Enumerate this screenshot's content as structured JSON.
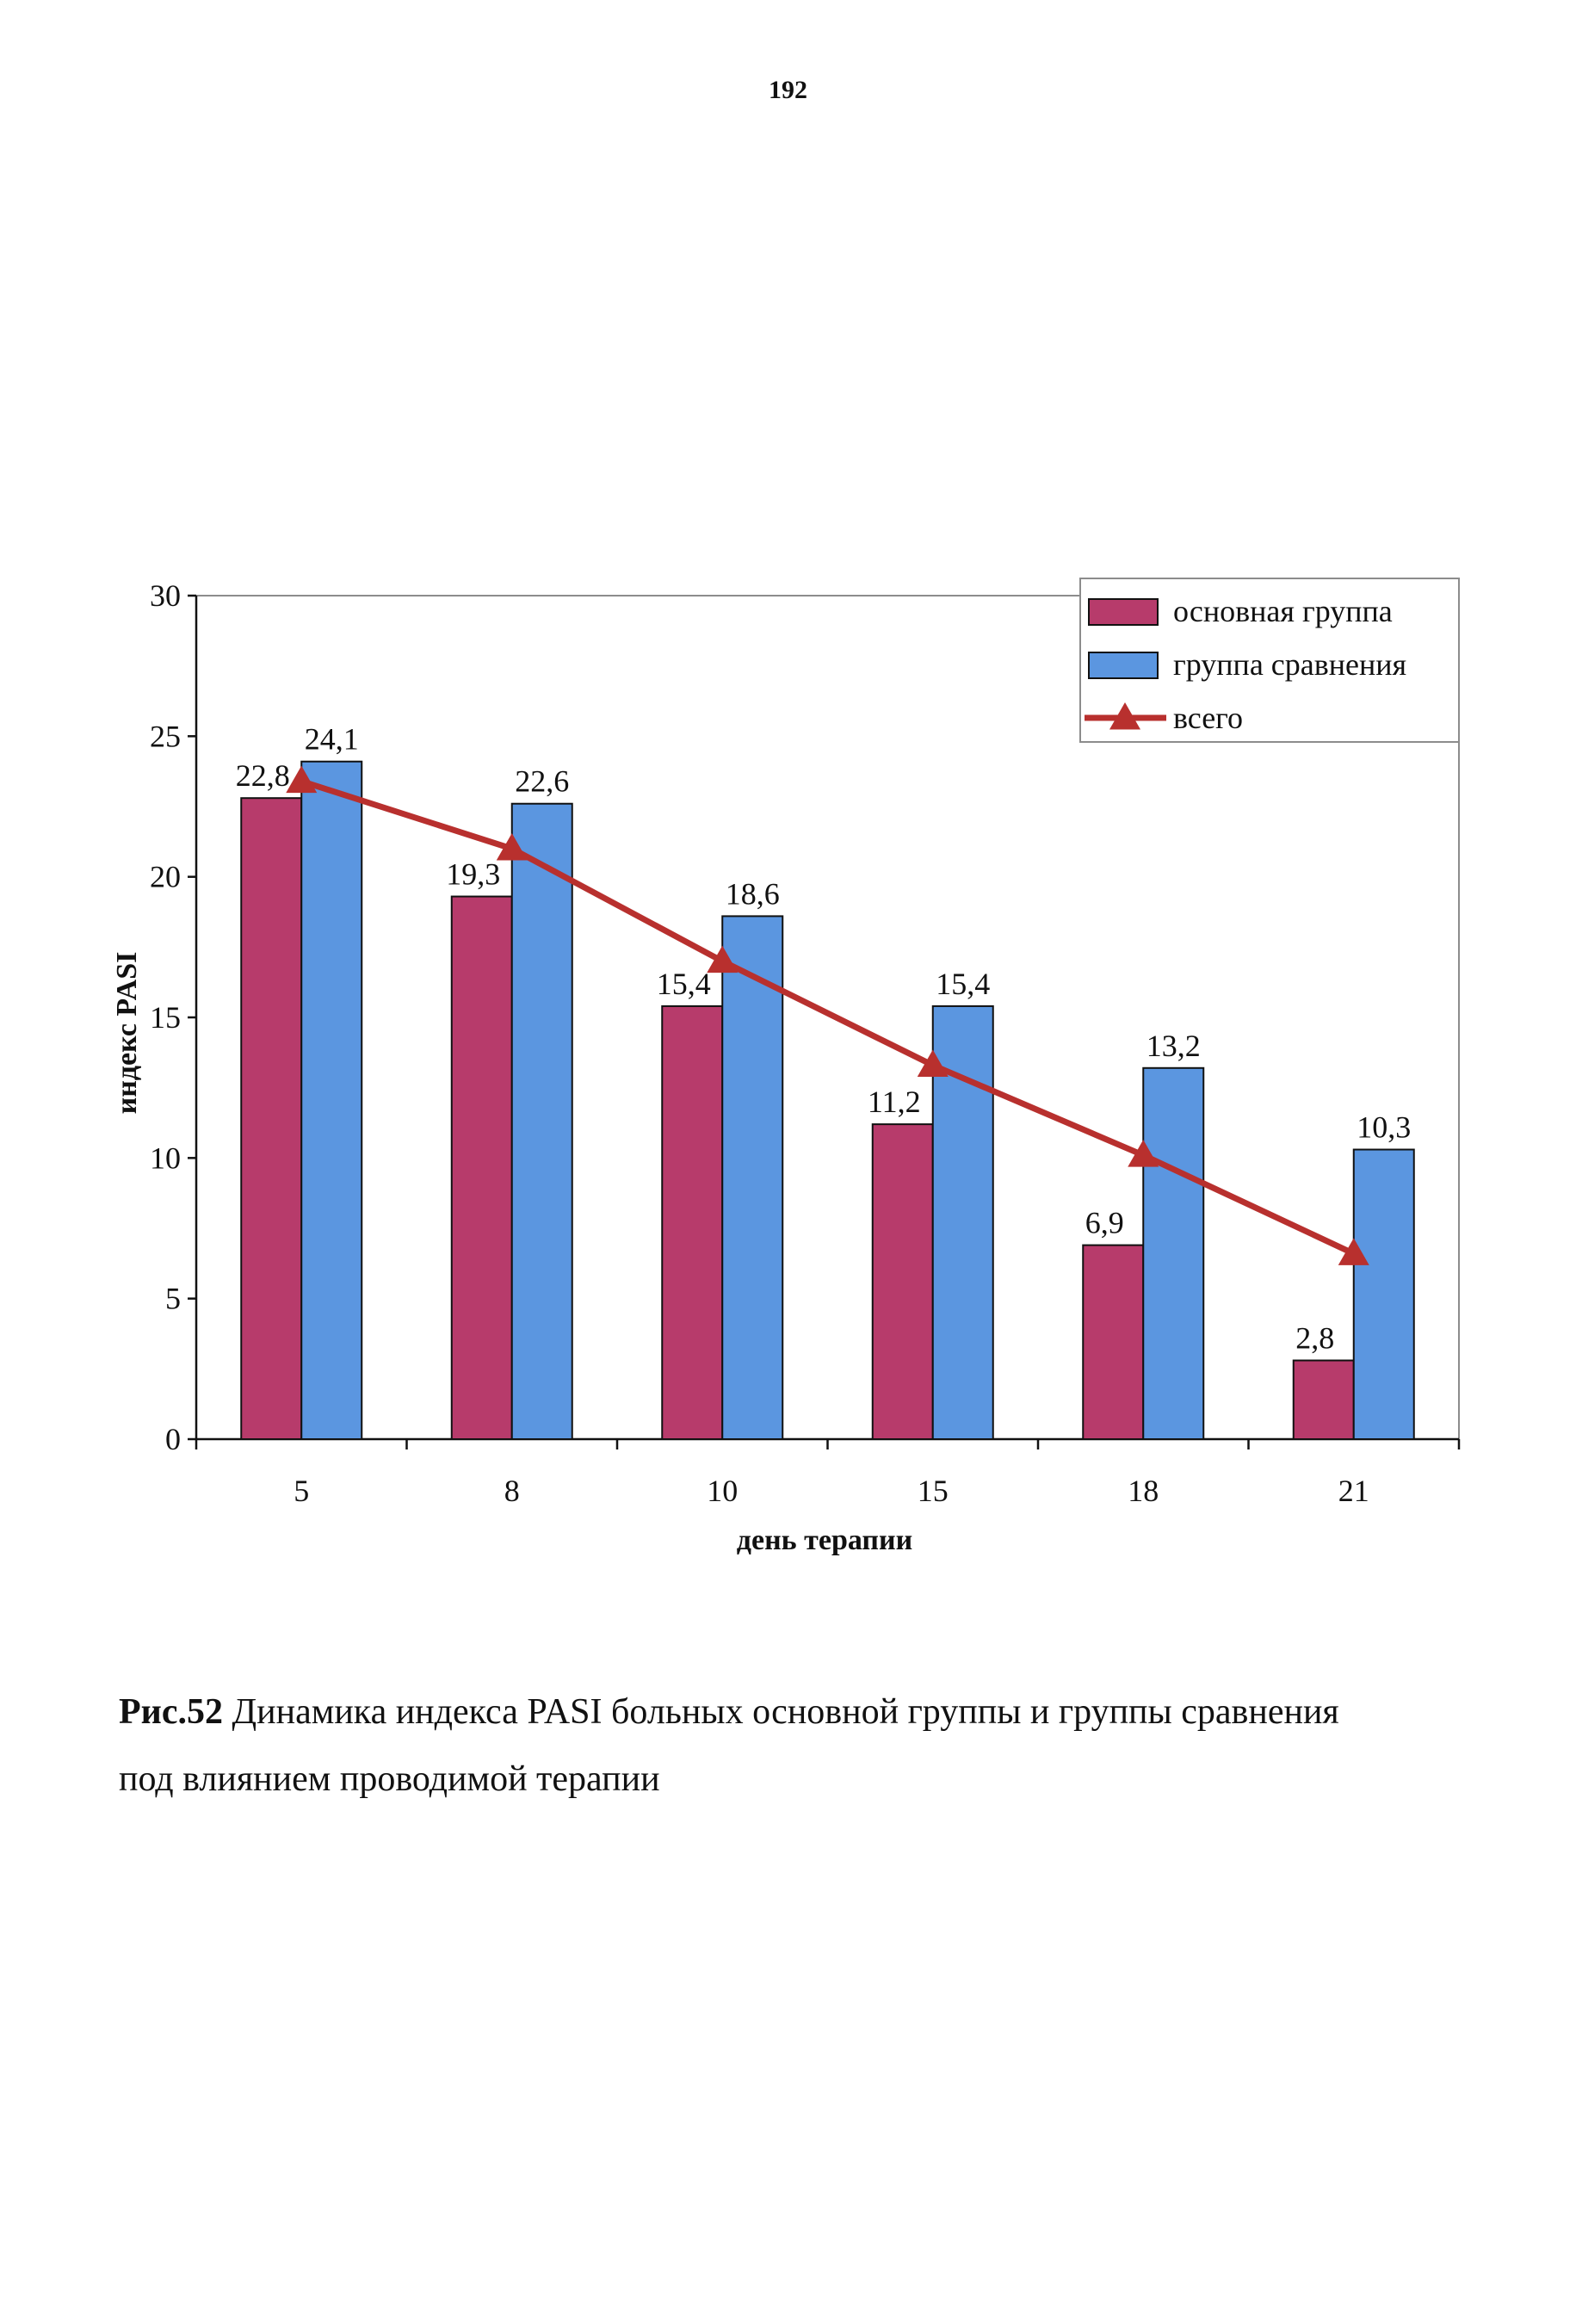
{
  "page": {
    "number": "192"
  },
  "chart_data": {
    "type": "bar",
    "categories": [
      "5",
      "8",
      "10",
      "15",
      "18",
      "21"
    ],
    "series": [
      {
        "name": "основная группа",
        "kind": "bar",
        "color": "#b73b6b",
        "values": [
          22.8,
          19.3,
          15.4,
          11.2,
          6.9,
          2.8
        ],
        "labels": [
          "22,8",
          "19,3",
          "15,4",
          "11,2",
          "6,9",
          "2,8"
        ]
      },
      {
        "name": "группа сравнения",
        "kind": "bar",
        "color": "#5b96e0",
        "values": [
          24.1,
          22.6,
          18.6,
          15.4,
          13.2,
          10.3
        ],
        "labels": [
          "24,1",
          "22,6",
          "18,6",
          "15,4",
          "13,2",
          "10,3"
        ]
      },
      {
        "name": "всего",
        "kind": "line",
        "color": "#b8302e",
        "values": [
          23.4,
          21.0,
          17.0,
          13.3,
          10.1,
          6.6
        ]
      }
    ],
    "xlabel": "день терапии",
    "ylabel": "индекс PASI",
    "ylim": [
      0,
      30
    ],
    "yticks": [
      "0",
      "5",
      "10",
      "15",
      "20",
      "25",
      "30"
    ],
    "grid": false,
    "legend_position": "top-right"
  },
  "caption": {
    "fig_num": "Рис.52",
    "line1": " Динамика индекса PASI  больных основной группы и группы сравнения",
    "line2": "под влиянием проводимой терапии"
  }
}
